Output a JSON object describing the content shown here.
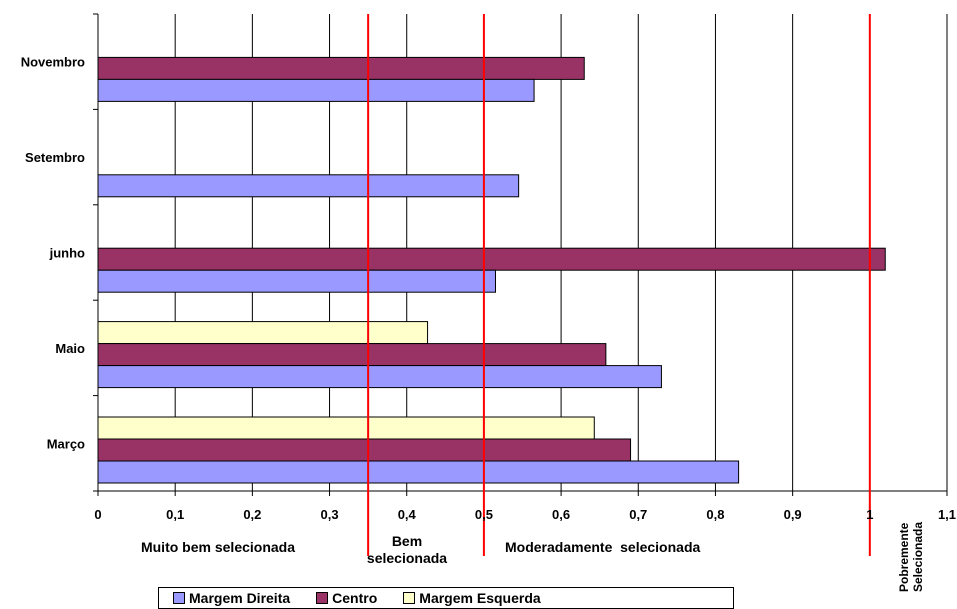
{
  "chart_data": {
    "type": "bar",
    "orientation": "horizontal",
    "categories": [
      "Novembro",
      "Setembro",
      "junho",
      "Maio",
      "Março"
    ],
    "series": [
      {
        "name": "Margem Direita",
        "color": "#9999ff",
        "values": [
          0.565,
          0.545,
          0.515,
          0.73,
          0.83
        ]
      },
      {
        "name": "Centro",
        "color": "#993366",
        "values": [
          0.63,
          null,
          1.02,
          0.658,
          0.69
        ]
      },
      {
        "name": "Margem Esquerda",
        "color": "#ffffcc",
        "values": [
          null,
          null,
          null,
          0.427,
          0.643
        ]
      }
    ],
    "xlim": [
      0,
      1.1
    ],
    "x_ticks": [
      "0",
      "0,1",
      "0,2",
      "0,3",
      "0,4",
      "0,5",
      "0,6",
      "0,7",
      "0,8",
      "0,9",
      "1",
      "1,1"
    ],
    "grid": true,
    "reference_lines": [
      0.35,
      0.5,
      1.0
    ],
    "reference_line_color": "#ff0000",
    "zone_labels": [
      {
        "text": "Muito bem selecionada"
      },
      {
        "text": "Bem selecionada"
      },
      {
        "text": "Moderadamente  selecionada"
      },
      {
        "text": "Pobremente Selecionada"
      }
    ],
    "legend_position": "bottom"
  }
}
